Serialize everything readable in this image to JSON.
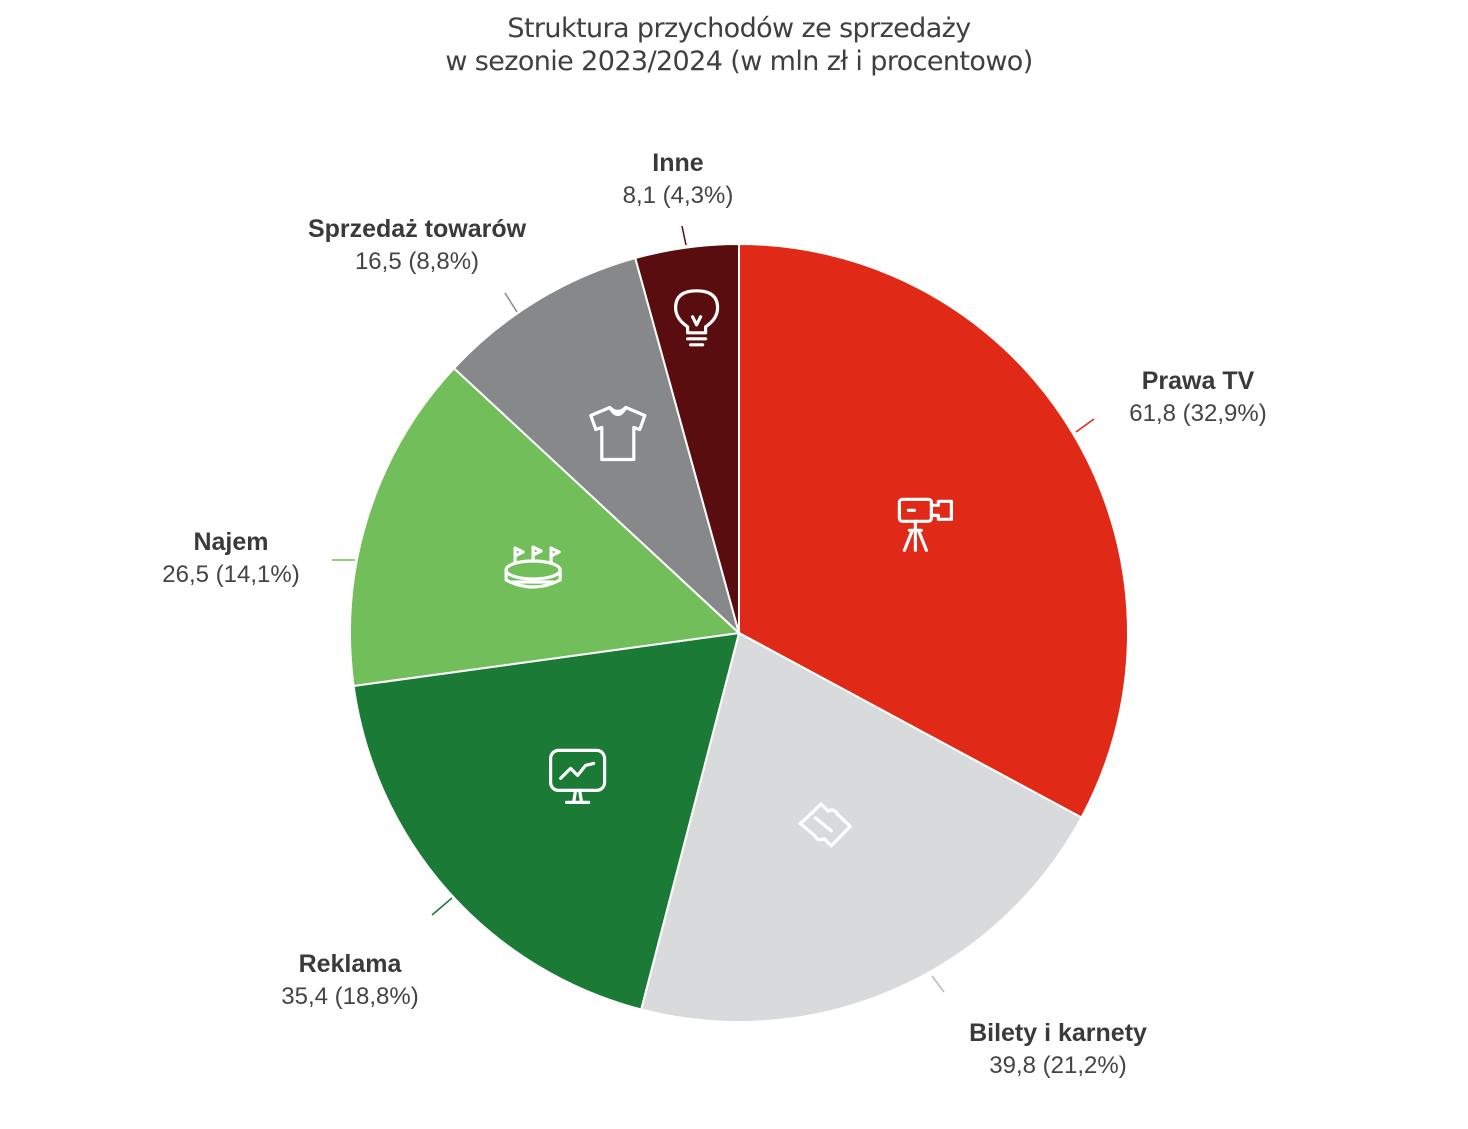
{
  "title_line1": "Struktura przychodów ze sprzedaży",
  "title_line2": "w sezonie 2023/2024 (w mln zł i procentowo)",
  "chart_data": {
    "type": "pie",
    "title": "Struktura przychodów ze sprzedaży w sezonie 2023/2024 (w mln zł i procentowo)",
    "start": "12 o'clock, clockwise",
    "slices": [
      {
        "label": "Prawa TV",
        "value": 61.8,
        "percent": 32.9,
        "value_text": "61,8 (32,9%)",
        "color": "#e02916",
        "icon": "video-camera-icon"
      },
      {
        "label": "Bilety i karnety",
        "value": 39.8,
        "percent": 21.2,
        "value_text": "39,8 (21,2%)",
        "color": "#d9dadb",
        "icon": "ticket-icon"
      },
      {
        "label": "Reklama",
        "value": 35.4,
        "percent": 18.8,
        "value_text": "35,4 (18,8%)",
        "color": "#1b7a35",
        "icon": "billboard-chart-icon"
      },
      {
        "label": "Najem",
        "value": 26.5,
        "percent": 14.1,
        "value_text": "26,5 (14,1%)",
        "color": "#72be5a",
        "icon": "stadium-icon"
      },
      {
        "label": "Sprzedaż towarów",
        "value": 16.5,
        "percent": 8.8,
        "value_text": "16,5 (8,8%)",
        "color": "#87888a",
        "icon": "tshirt-icon"
      },
      {
        "label": "Inne",
        "value": 8.1,
        "percent": 4.3,
        "value_text": "8,1 (4,3%)",
        "color": "#5a0d0f",
        "icon": "lightbulb-icon"
      }
    ]
  }
}
